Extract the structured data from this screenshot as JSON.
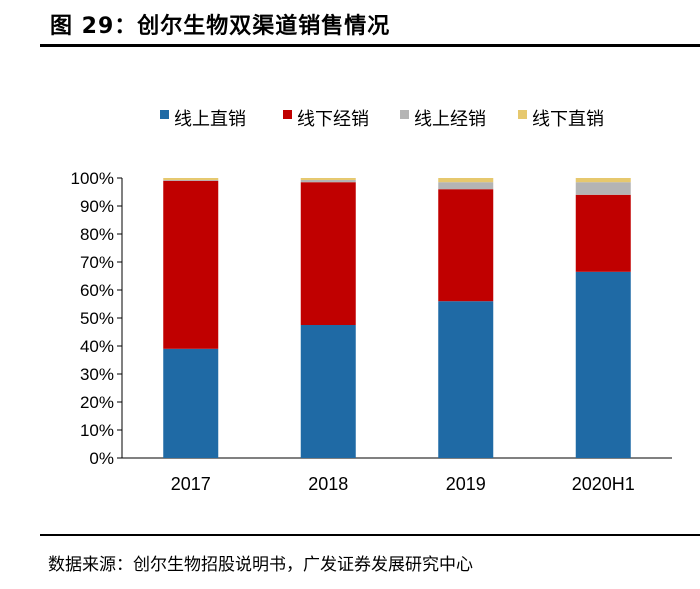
{
  "figure": {
    "title": "图 29：创尔生物双渠道销售情况",
    "source": "数据来源：创尔生物招股说明书，广发证券发展研究中心"
  },
  "chart_data": {
    "type": "bar",
    "stacked": true,
    "categories": [
      "2017",
      "2018",
      "2019",
      "2020H1"
    ],
    "series": [
      {
        "name": "线上直销",
        "color": "#1F6AA5",
        "values": [
          39,
          47.5,
          56,
          66.5
        ]
      },
      {
        "name": "线下经销",
        "color": "#C00000",
        "values": [
          60,
          51,
          40,
          27.5
        ]
      },
      {
        "name": "线上经销",
        "color": "#B4B4B4",
        "values": [
          0.3,
          0.8,
          2.5,
          4.5
        ]
      },
      {
        "name": "线下直销",
        "color": "#E6C86E",
        "values": [
          0.7,
          0.7,
          1.5,
          1.5
        ]
      }
    ],
    "ylim": [
      0,
      100
    ],
    "yticks": [
      "0%",
      "10%",
      "20%",
      "30%",
      "40%",
      "50%",
      "60%",
      "70%",
      "80%",
      "90%",
      "100%"
    ],
    "legend_position": "top",
    "grid": false,
    "title": "",
    "xlabel": "",
    "ylabel": ""
  }
}
